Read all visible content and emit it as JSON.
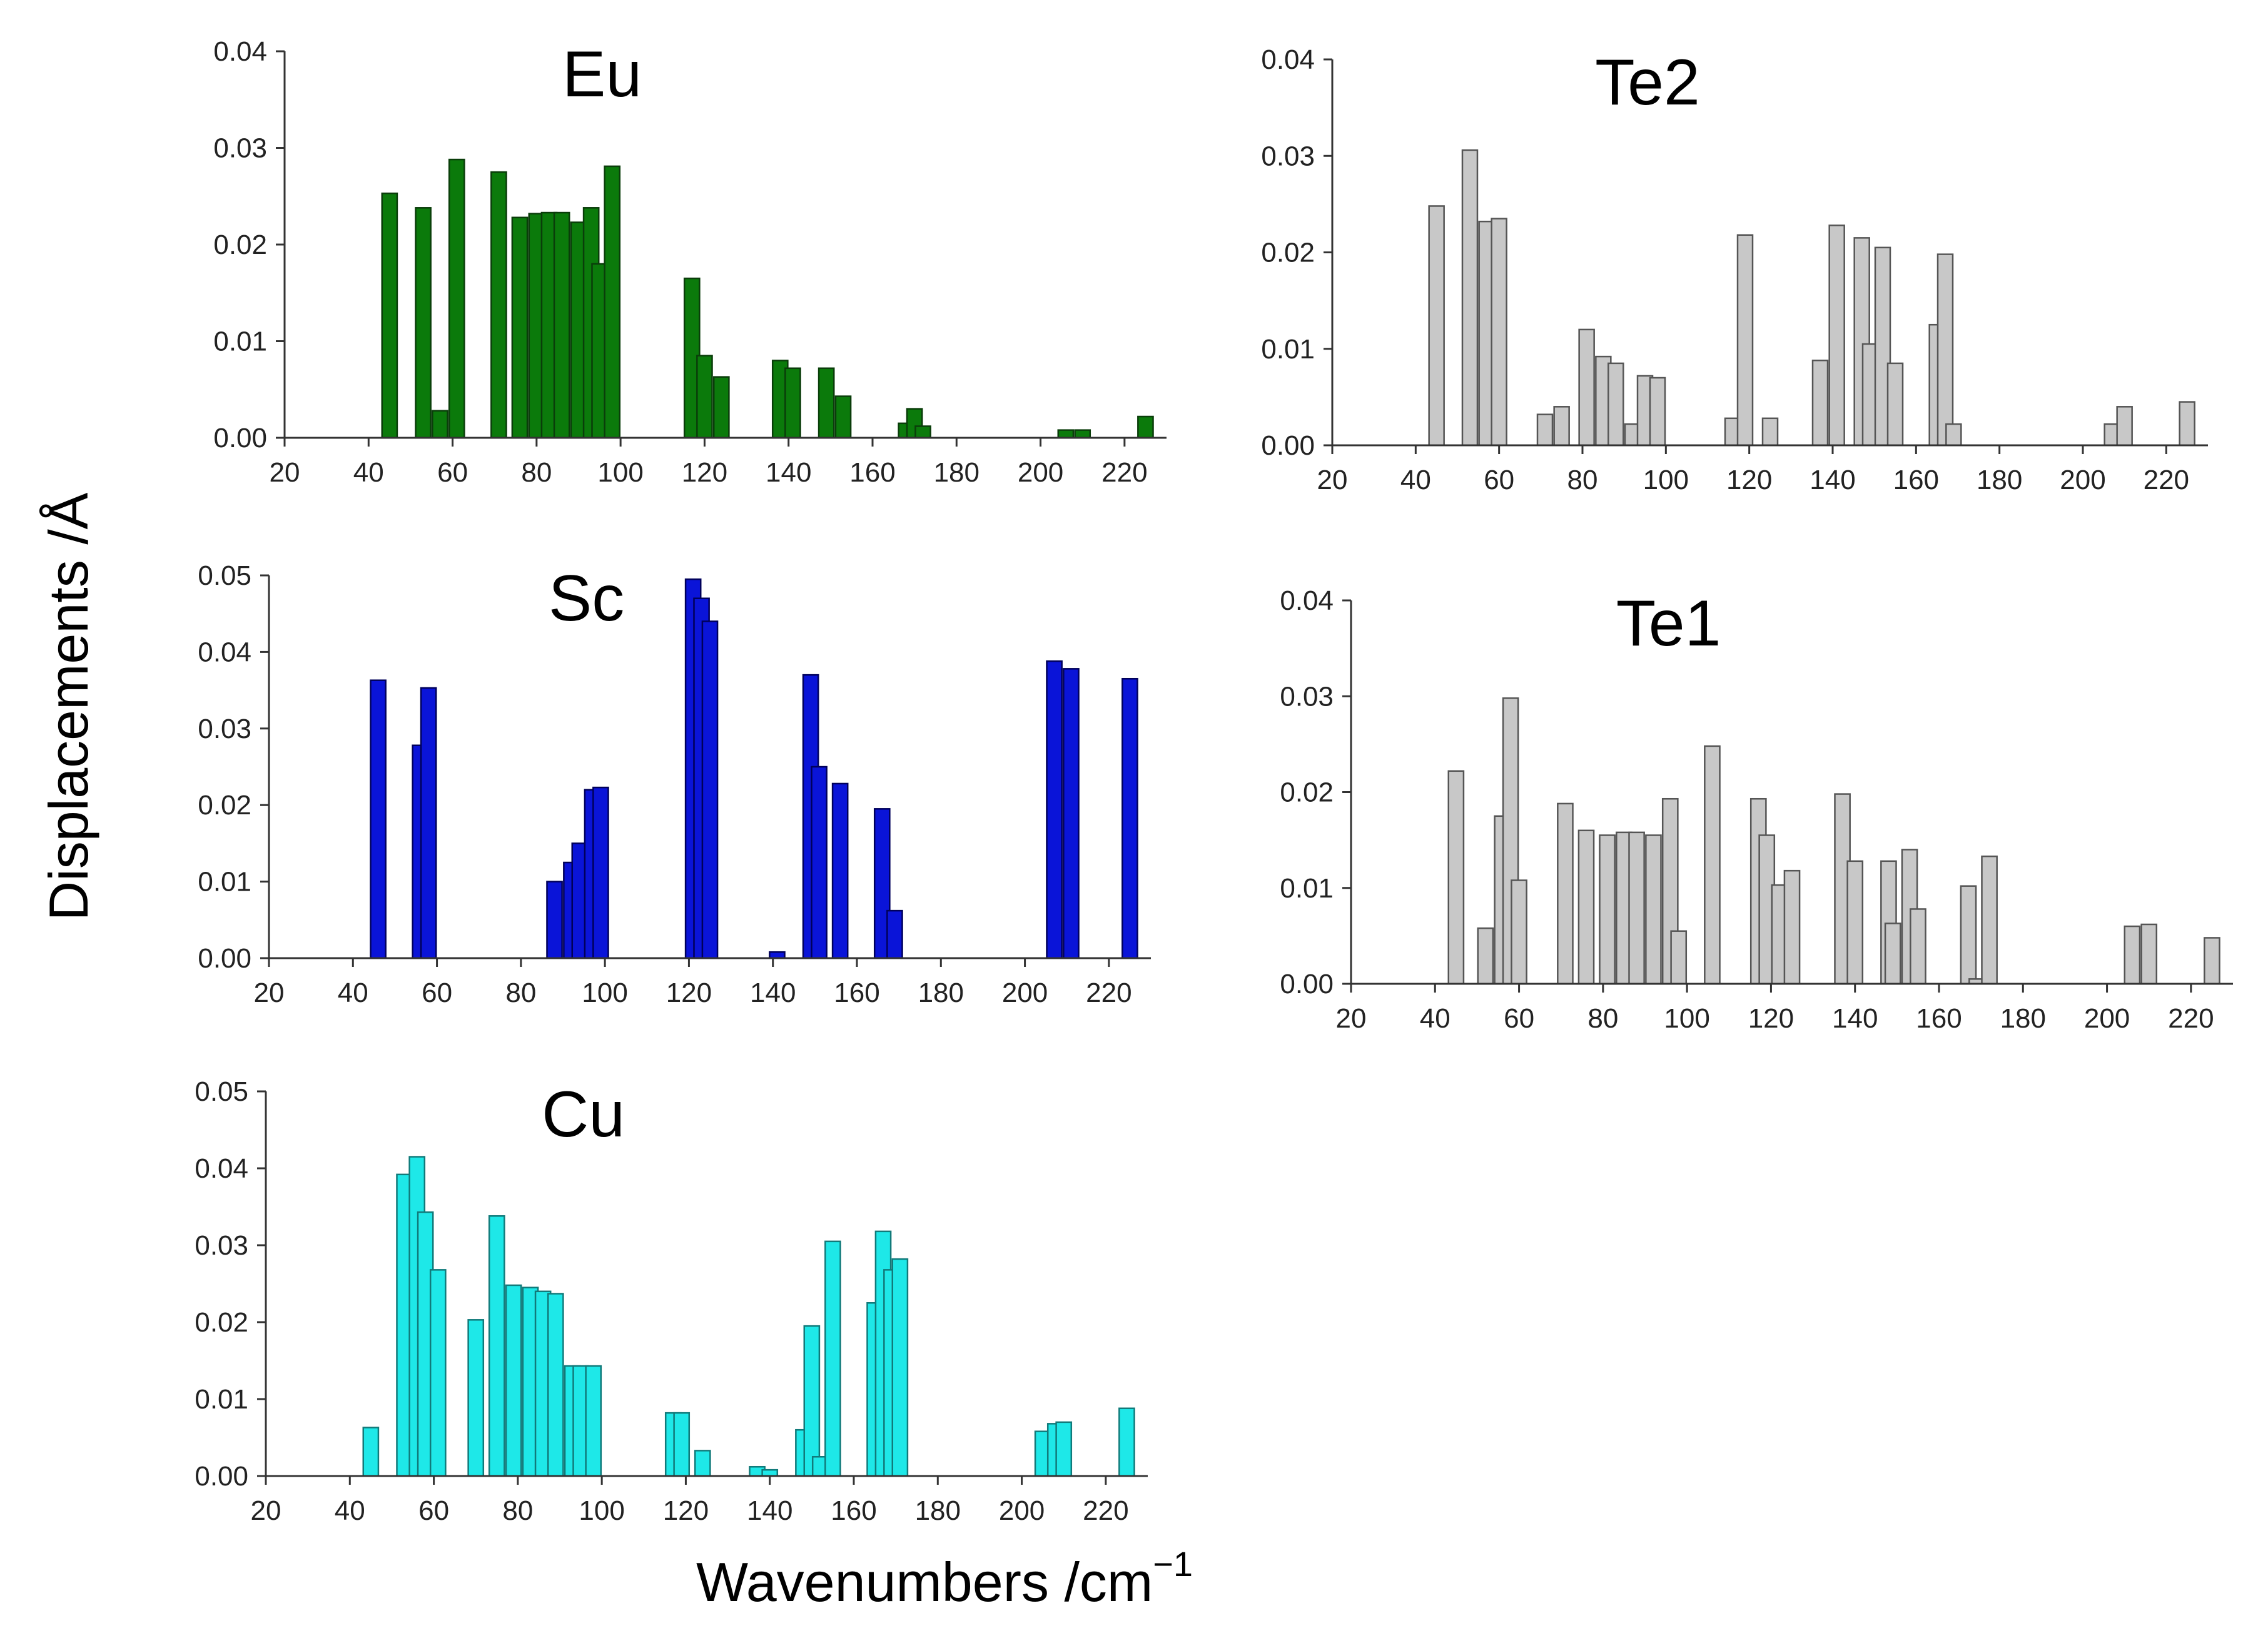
{
  "figure": {
    "ylabel": "Displacements /Å",
    "xlabel_main": "Wavenumbers /cm",
    "xlabel_sup": "−1"
  },
  "chart_data": [
    {
      "id": "eu",
      "type": "bar",
      "title": "Eu",
      "color": "#0b7a0b",
      "stroke": "#0a3d0a",
      "xlim": [
        20,
        230
      ],
      "ylim": [
        0,
        0.04
      ],
      "xticks": [
        "20",
        "40",
        "60",
        "80",
        "100",
        "120",
        "140",
        "160",
        "180",
        "200",
        "220"
      ],
      "yticks": [
        "0.00",
        "0.01",
        "0.02",
        "0.03",
        "0.04"
      ],
      "x": [
        45,
        53,
        57,
        61,
        71,
        76,
        80,
        83,
        86,
        90,
        93,
        95,
        98,
        117,
        120,
        124,
        138,
        141,
        149,
        153,
        168,
        170,
        172,
        206,
        210,
        225
      ],
      "values": [
        0.0253,
        0.0238,
        0.0028,
        0.0288,
        0.0275,
        0.0228,
        0.0232,
        0.0233,
        0.0233,
        0.0223,
        0.0238,
        0.018,
        0.0281,
        0.0165,
        0.0085,
        0.0063,
        0.008,
        0.0072,
        0.0072,
        0.0043,
        0.0015,
        0.003,
        0.0012,
        0.0008,
        0.0008,
        0.0022
      ]
    },
    {
      "id": "te2",
      "type": "bar",
      "title": "Te2",
      "color": "#c8c8c8",
      "stroke": "#555555",
      "xlim": [
        20,
        230
      ],
      "ylim": [
        0,
        0.04
      ],
      "xticks": [
        "20",
        "40",
        "60",
        "80",
        "100",
        "120",
        "140",
        "160",
        "180",
        "200",
        "220"
      ],
      "yticks": [
        "0.00",
        "0.01",
        "0.02",
        "0.03",
        "0.04"
      ],
      "x": [
        45,
        53,
        57,
        60,
        71,
        75,
        81,
        85,
        88,
        92,
        95,
        98,
        116,
        119,
        125,
        137,
        141,
        147,
        149,
        152,
        155,
        165,
        167,
        169,
        207,
        210,
        225
      ],
      "values": [
        0.0248,
        0.0306,
        0.0232,
        0.0235,
        0.0032,
        0.004,
        0.012,
        0.0092,
        0.0085,
        0.0022,
        0.0072,
        0.007,
        0.0028,
        0.0218,
        0.0028,
        0.0088,
        0.0228,
        0.0215,
        0.0105,
        0.0205,
        0.0085,
        0.0125,
        0.0198,
        0.0022,
        0.0022,
        0.004,
        0.0045
      ]
    },
    {
      "id": "sc",
      "type": "bar",
      "title": "Sc",
      "color": "#0a14d8",
      "stroke": "#00005a",
      "xlim": [
        20,
        230
      ],
      "ylim": [
        0,
        0.05
      ],
      "xticks": [
        "20",
        "40",
        "60",
        "80",
        "100",
        "120",
        "140",
        "160",
        "180",
        "200",
        "220"
      ],
      "yticks": [
        "0.00",
        "0.01",
        "0.02",
        "0.03",
        "0.04",
        "0.05"
      ],
      "x": [
        46,
        56,
        58,
        88,
        92,
        94,
        97,
        99,
        121,
        123,
        125,
        141,
        149,
        151,
        156,
        166,
        169,
        207,
        211,
        225
      ],
      "values": [
        0.0363,
        0.0278,
        0.0353,
        0.01,
        0.0125,
        0.015,
        0.022,
        0.0223,
        0.0495,
        0.047,
        0.044,
        0.0008,
        0.037,
        0.025,
        0.0228,
        0.0195,
        0.0062,
        0.0388,
        0.0378,
        0.0365
      ]
    },
    {
      "id": "te1",
      "type": "bar",
      "title": "Te1",
      "color": "#c8c8c8",
      "stroke": "#555555",
      "xlim": [
        20,
        230
      ],
      "ylim": [
        0,
        0.04
      ],
      "xticks": [
        "20",
        "40",
        "60",
        "80",
        "100",
        "120",
        "140",
        "160",
        "180",
        "200",
        "220"
      ],
      "yticks": [
        "0.00",
        "0.01",
        "0.02",
        "0.03",
        "0.04"
      ],
      "x": [
        45,
        52,
        56,
        58,
        60,
        71,
        76,
        81,
        85,
        88,
        92,
        96,
        98,
        106,
        117,
        119,
        122,
        125,
        137,
        140,
        148,
        149,
        153,
        155,
        167,
        169,
        172,
        206,
        210,
        225
      ],
      "values": [
        0.0222,
        0.0058,
        0.0175,
        0.0298,
        0.0108,
        0.0188,
        0.016,
        0.0155,
        0.0158,
        0.0158,
        0.0155,
        0.0193,
        0.0055,
        0.0248,
        0.0193,
        0.0155,
        0.0103,
        0.0118,
        0.0198,
        0.0128,
        0.0128,
        0.0063,
        0.014,
        0.0078,
        0.0102,
        0.0005,
        0.0133,
        0.006,
        0.0062,
        0.0048
      ]
    },
    {
      "id": "cu",
      "type": "bar",
      "title": "Cu",
      "color": "#1ee8e8",
      "stroke": "#117a7a",
      "xlim": [
        20,
        230
      ],
      "ylim": [
        0,
        0.05
      ],
      "xticks": [
        "20",
        "40",
        "60",
        "80",
        "100",
        "120",
        "140",
        "160",
        "180",
        "200",
        "220"
      ],
      "yticks": [
        "0.00",
        "0.01",
        "0.02",
        "0.03",
        "0.04",
        "0.05"
      ],
      "x": [
        45,
        53,
        56,
        58,
        61,
        70,
        75,
        79,
        83,
        86,
        89,
        93,
        95,
        98,
        117,
        119,
        124,
        137,
        140,
        148,
        150,
        152,
        155,
        165,
        167,
        169,
        171,
        205,
        208,
        210,
        225
      ],
      "values": [
        0.0063,
        0.0392,
        0.0415,
        0.0343,
        0.0268,
        0.0203,
        0.0338,
        0.0248,
        0.0245,
        0.024,
        0.0237,
        0.0143,
        0.0143,
        0.0143,
        0.0082,
        0.0082,
        0.0033,
        0.0012,
        0.0008,
        0.006,
        0.0195,
        0.0025,
        0.0305,
        0.0225,
        0.0318,
        0.0268,
        0.0282,
        0.0058,
        0.0068,
        0.007,
        0.0088
      ]
    }
  ]
}
